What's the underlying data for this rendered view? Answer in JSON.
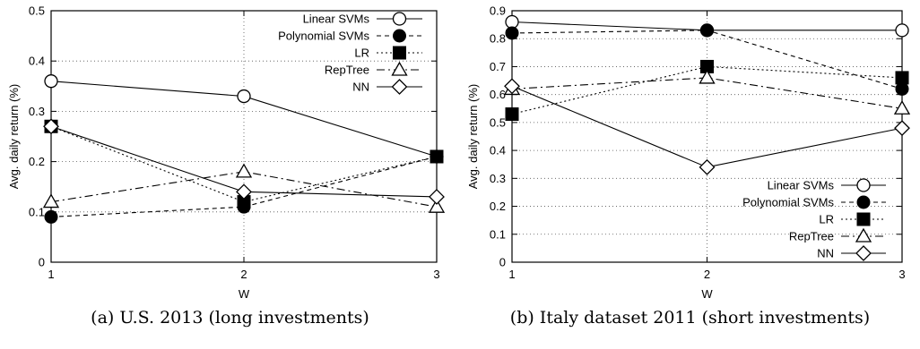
{
  "chart_data": [
    {
      "type": "line",
      "caption": "(a) U.S. 2013 (long investments)",
      "xlabel": "W",
      "ylabel": "Avg. daily return (%)",
      "x": [
        1,
        2,
        3
      ],
      "xticks": [
        "1",
        "2",
        "3"
      ],
      "ylim": [
        0,
        0.5
      ],
      "yticks": [
        "0",
        "0.1",
        "0.2",
        "0.3",
        "0.4",
        "0.5"
      ],
      "grid": true,
      "legend_position": "top-right",
      "series": [
        {
          "name": "Linear SVMs",
          "values": [
            0.36,
            0.33,
            0.21
          ],
          "marker": "circle-open",
          "dash": "solid"
        },
        {
          "name": "Polynomial SVMs",
          "values": [
            0.09,
            0.11,
            0.21
          ],
          "marker": "circle-filled",
          "dash": "dashed"
        },
        {
          "name": "LR",
          "values": [
            0.27,
            0.12,
            0.21
          ],
          "marker": "square-filled",
          "dash": "dotted"
        },
        {
          "name": "RepTree",
          "values": [
            0.12,
            0.18,
            0.11
          ],
          "marker": "triangle-open",
          "dash": "dashdot"
        },
        {
          "name": "NN",
          "values": [
            0.27,
            0.14,
            0.13
          ],
          "marker": "diamond-open",
          "dash": "solid"
        }
      ]
    },
    {
      "type": "line",
      "caption": "(b) Italy dataset 2011 (short investments)",
      "xlabel": "W",
      "ylabel": "Avg. daily return (%)",
      "x": [
        1,
        2,
        3
      ],
      "xticks": [
        "1",
        "2",
        "3"
      ],
      "ylim": [
        0,
        0.9
      ],
      "yticks": [
        "0",
        "0.1",
        "0.2",
        "0.3",
        "0.4",
        "0.5",
        "0.6",
        "0.7",
        "0.8",
        "0.9"
      ],
      "grid": true,
      "legend_position": "bottom-right",
      "series": [
        {
          "name": "Linear SVMs",
          "values": [
            0.86,
            0.83,
            0.83
          ],
          "marker": "circle-open",
          "dash": "solid"
        },
        {
          "name": "Polynomial SVMs",
          "values": [
            0.82,
            0.83,
            0.62
          ],
          "marker": "circle-filled",
          "dash": "dashed"
        },
        {
          "name": "LR",
          "values": [
            0.53,
            0.7,
            0.66
          ],
          "marker": "square-filled",
          "dash": "dotted"
        },
        {
          "name": "RepTree",
          "values": [
            0.62,
            0.66,
            0.55
          ],
          "marker": "triangle-open",
          "dash": "dashdot"
        },
        {
          "name": "NN",
          "values": [
            0.63,
            0.34,
            0.48
          ],
          "marker": "diamond-open",
          "dash": "solid"
        }
      ]
    }
  ]
}
